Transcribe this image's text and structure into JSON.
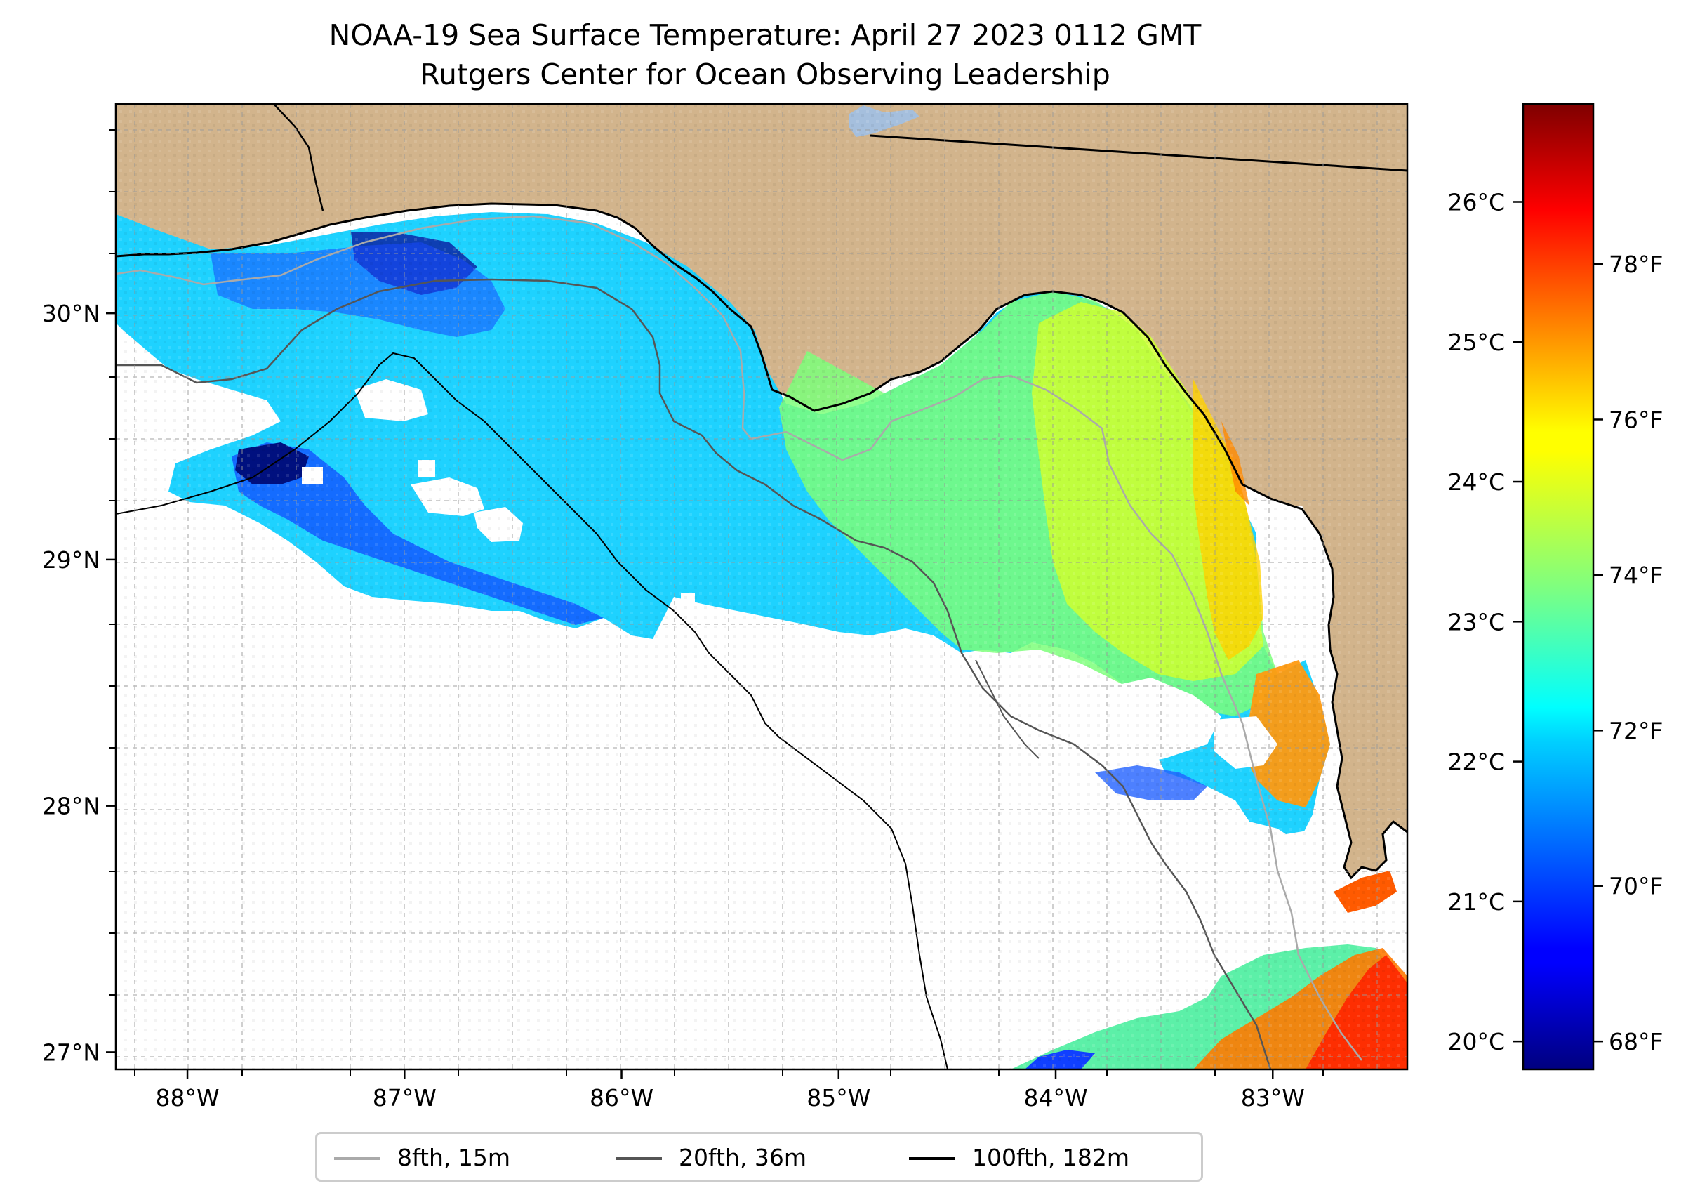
{
  "title": "NOAA-19 Sea Surface Temperature: April 27 2023 0112 GMT",
  "subtitle": "Rutgers Center for Ocean Observing Leadership",
  "map": {
    "lon_range": [
      -88.33,
      -82.38
    ],
    "lat_range": [
      26.93,
      30.85
    ],
    "land_color": "#d2b48c",
    "no_data_color": "#ffffff",
    "gridlines": true,
    "lon_ticks": [
      {
        "value": -88,
        "label": "88°W"
      },
      {
        "value": -87,
        "label": "87°W"
      },
      {
        "value": -86,
        "label": "86°W"
      },
      {
        "value": -85,
        "label": "85°W"
      },
      {
        "value": -84,
        "label": "84°W"
      },
      {
        "value": -83,
        "label": "83°W"
      }
    ],
    "lat_ticks": [
      {
        "value": 30,
        "label": "30°N"
      },
      {
        "value": 29,
        "label": "29°N"
      },
      {
        "value": 28,
        "label": "28°N"
      },
      {
        "value": 27,
        "label": "27°N"
      }
    ]
  },
  "colorbar": {
    "colormap": "jet",
    "range_c": [
      19.8,
      26.7
    ],
    "celsius_ticks": [
      {
        "value": 26,
        "label": "26°C"
      },
      {
        "value": 25,
        "label": "25°C"
      },
      {
        "value": 24,
        "label": "24°C"
      },
      {
        "value": 23,
        "label": "23°C"
      },
      {
        "value": 22,
        "label": "22°C"
      },
      {
        "value": 21,
        "label": "21°C"
      },
      {
        "value": 20,
        "label": "20°C"
      }
    ],
    "fahrenheit_ticks": [
      {
        "value": 78,
        "label": "78°F"
      },
      {
        "value": 76,
        "label": "76°F"
      },
      {
        "value": 74,
        "label": "74°F"
      },
      {
        "value": 72,
        "label": "72°F"
      },
      {
        "value": 70,
        "label": "70°F"
      },
      {
        "value": 68,
        "label": "68°F"
      }
    ]
  },
  "legend": {
    "items": [
      {
        "label": "8fth, 15m",
        "color": "#aaaaaa"
      },
      {
        "label": "20fth, 36m",
        "color": "#555555"
      },
      {
        "label": "100fth, 182m",
        "color": "#000000"
      }
    ]
  }
}
